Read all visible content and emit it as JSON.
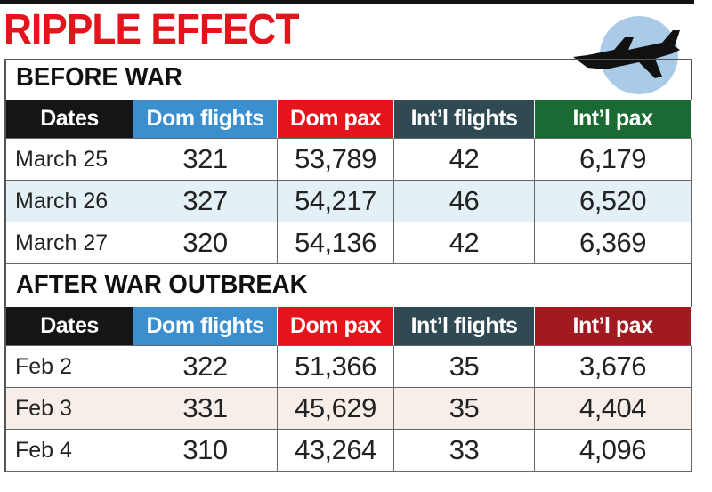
{
  "title": "RIPPLE EFFECT",
  "sections": [
    {
      "heading": "BEFORE WAR",
      "columns": [
        "Dates",
        "Dom flights",
        "Dom pax",
        "Int’l flights",
        "Int’l pax"
      ],
      "rows": [
        [
          "March 25",
          "321",
          "53,789",
          "42",
          "6,179"
        ],
        [
          "March 26",
          "327",
          "54,217",
          "46",
          "6,520"
        ],
        [
          "March 27",
          "320",
          "54,136",
          "42",
          "6,369"
        ]
      ]
    },
    {
      "heading": "AFTER WAR OUTBREAK",
      "columns": [
        "Dates",
        "Dom flights",
        "Dom pax",
        "Int’l flights",
        "Int’l pax"
      ],
      "rows": [
        [
          "Feb 2",
          "322",
          "51,366",
          "35",
          "3,676"
        ],
        [
          "Feb 3",
          "331",
          "45,629",
          "35",
          "4,404"
        ],
        [
          "Feb 4",
          "310",
          "43,264",
          "33",
          "4,096"
        ]
      ]
    }
  ]
}
